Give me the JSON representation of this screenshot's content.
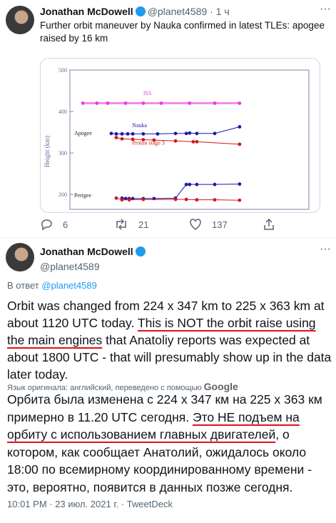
{
  "tweet1": {
    "name": "Jonathan McDowell",
    "handle": "@planet4589",
    "time": "· 1 ч",
    "text": "Further orbit maneuver by Nauka confirmed in latest TLEs: apogee raised by 16 km",
    "replies": 6,
    "retweets": 21,
    "likes": 137
  },
  "chart_data": {
    "type": "line",
    "y_label": "Height (km)",
    "annotations": [
      "ISS",
      "Nauka",
      "Apogee",
      "Proton stage 3",
      "Perigee"
    ],
    "xlim": [
      0,
      100
    ],
    "ylim": [
      164,
      500
    ],
    "yticks": [
      200,
      300,
      400,
      500
    ],
    "series": [
      {
        "color": "#e040e0",
        "x": [
          5.4,
          11.3,
          15.8,
          23.3,
          30.7,
          38.2,
          50.1,
          60.6,
          71.0
        ],
        "values": [
          420,
          420,
          420,
          420,
          420,
          420,
          420,
          420,
          420
        ]
      },
      {
        "color": "#1a1aa8",
        "x": [
          17.3,
          19.4,
          21.8,
          24.2,
          26.3,
          30.7,
          36.7,
          44.2,
          48.7,
          50.1,
          53.1,
          60.6,
          71.0
        ],
        "values": [
          347,
          346,
          346,
          346,
          346,
          346,
          346,
          347,
          347,
          348,
          347,
          347,
          363
        ]
      },
      {
        "color": "#d01818",
        "x": [
          19.4,
          21.8,
          26.3,
          30.7,
          35.2,
          44.2,
          51.6,
          53.1,
          71.0
        ],
        "values": [
          337,
          334,
          333,
          332,
          331,
          329,
          327,
          327,
          321
        ]
      },
      {
        "color": "#1a1aa8",
        "x": [
          21.8,
          23.3,
          24.8,
          26.3,
          30.7,
          35.2,
          44.2,
          48.7,
          50.1,
          53.1,
          60.6,
          71.0
        ],
        "values": [
          191,
          190,
          190,
          190,
          190,
          190,
          191,
          224,
          224,
          224,
          224,
          225
        ]
      },
      {
        "color": "#d01818",
        "x": [
          19.4,
          21.8,
          24.8,
          30.7,
          44.2,
          48.7,
          53.1,
          60.6,
          71.0
        ],
        "values": [
          191,
          187,
          187,
          188,
          188,
          188,
          187,
          187,
          186
        ]
      }
    ]
  },
  "tweet2": {
    "name": "Jonathan McDowell",
    "handle": "@planet4589",
    "reply_prefix": "В ответ",
    "reply_to": "@planet4589",
    "text_parts": [
      "Orbit was changed from 224 x 347 km to 225 x 363 km at about 1120 UTC today. ",
      "This is NOT the orbit raise using the main engines",
      " that Anatoliy reports was expected at about 1800 UTC - that will presumably show up in the data later today."
    ],
    "translation_note": "Язык оригинала: английский, переведено с помощью",
    "translator": "Google",
    "translated_parts": [
      "Орбита была изменена с 224 x 347 км на 225 x 363 км примерно в 11.20 UTC сегодня. ",
      "Это НЕ подъем на орбиту с использованием главных двигателей",
      ", о котором, как сообщает Анатолий, ожидалось около 18:00 по всемирному координированному времени - это, вероятно, появится в данных позже сегодня."
    ],
    "timestamp": "10:01 PM · 23 июл. 2021 г. · TweetDeck"
  }
}
